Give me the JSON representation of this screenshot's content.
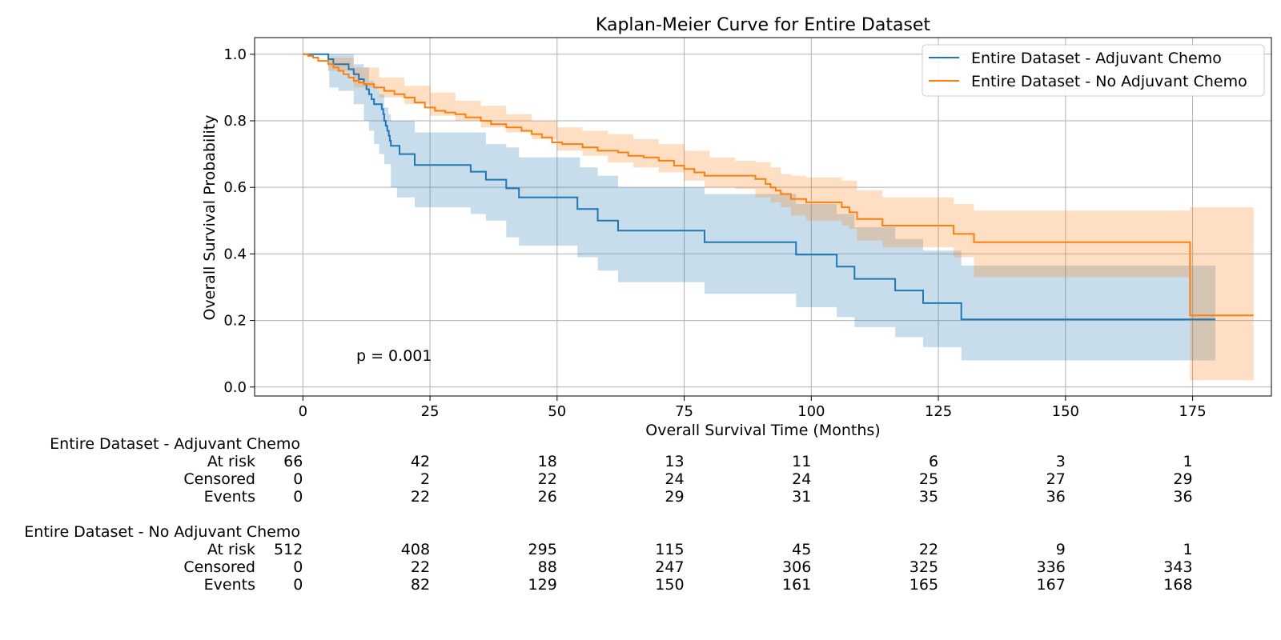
{
  "chart_data": {
    "type": "line",
    "title": "Kaplan-Meier Curve for Entire Dataset",
    "xlabel": "Overall Survival Time (Months)",
    "ylabel": "Overall Survival Probability",
    "xlim": [
      -9.5,
      190.5
    ],
    "ylim": [
      -0.027,
      1.05
    ],
    "xticks": [
      0,
      25,
      50,
      75,
      100,
      125,
      150,
      175
    ],
    "yticks": [
      0.0,
      0.2,
      0.4,
      0.6,
      0.8,
      1.0
    ],
    "xtick_labels": [
      "0",
      "25",
      "50",
      "75",
      "100",
      "125",
      "150",
      "175"
    ],
    "ytick_labels": [
      "0.0",
      "0.2",
      "0.4",
      "0.6",
      "0.8",
      "1.0"
    ],
    "grid": true,
    "legend_position": "top-right",
    "annotation": "p = 0.001",
    "series": [
      {
        "name": "Entire Dataset - Adjuvant Chemo",
        "color": "#1f77b4",
        "fill_color": "#1f77b4",
        "steps": [
          [
            0,
            1.0
          ],
          [
            5,
            0.985
          ],
          [
            6,
            0.97
          ],
          [
            9,
            0.955
          ],
          [
            10,
            0.94
          ],
          [
            11,
            0.925
          ],
          [
            12,
            0.91
          ],
          [
            12.5,
            0.895
          ],
          [
            13,
            0.88
          ],
          [
            13.5,
            0.865
          ],
          [
            14,
            0.85
          ],
          [
            15.5,
            0.835
          ],
          [
            15.8,
            0.82
          ],
          [
            16,
            0.8
          ],
          [
            16.3,
            0.785
          ],
          [
            16.6,
            0.77
          ],
          [
            16.9,
            0.755
          ],
          [
            17.1,
            0.74
          ],
          [
            17.3,
            0.725
          ],
          [
            19,
            0.7
          ],
          [
            22,
            0.667
          ],
          [
            33,
            0.647
          ],
          [
            36,
            0.623
          ],
          [
            40,
            0.597
          ],
          [
            42.5,
            0.57
          ],
          [
            54,
            0.535
          ],
          [
            58,
            0.5
          ],
          [
            62,
            0.47
          ],
          [
            79,
            0.435
          ],
          [
            97,
            0.398
          ],
          [
            105,
            0.362
          ],
          [
            108.5,
            0.325
          ],
          [
            116.5,
            0.29
          ],
          [
            122,
            0.252
          ],
          [
            129.5,
            0.203
          ],
          [
            179.5,
            0.203
          ]
        ],
        "ci_upper": [
          [
            0,
            1.0
          ],
          [
            5,
            1.0
          ],
          [
            10,
            0.97
          ],
          [
            12,
            0.96
          ],
          [
            13,
            0.92
          ],
          [
            14,
            0.9
          ],
          [
            15,
            0.88
          ],
          [
            16,
            0.84
          ],
          [
            16.8,
            0.82
          ],
          [
            17.3,
            0.8
          ],
          [
            22,
            0.765
          ],
          [
            33,
            0.765
          ],
          [
            36,
            0.73
          ],
          [
            40,
            0.72
          ],
          [
            42.5,
            0.69
          ],
          [
            54,
            0.69
          ],
          [
            54.5,
            0.66
          ],
          [
            58,
            0.635
          ],
          [
            62,
            0.6
          ],
          [
            79,
            0.58
          ],
          [
            97,
            0.55
          ],
          [
            105,
            0.52
          ],
          [
            108.5,
            0.48
          ],
          [
            116.5,
            0.445
          ],
          [
            122,
            0.41
          ],
          [
            129.5,
            0.365
          ],
          [
            179.5,
            0.365
          ]
        ],
        "ci_lower": [
          [
            0,
            1.0
          ],
          [
            5,
            0.95
          ],
          [
            5.2,
            0.9
          ],
          [
            7,
            0.89
          ],
          [
            10,
            0.85
          ],
          [
            12,
            0.8
          ],
          [
            13,
            0.77
          ],
          [
            14,
            0.73
          ],
          [
            15,
            0.7
          ],
          [
            16,
            0.67
          ],
          [
            17.3,
            0.6
          ],
          [
            18.5,
            0.57
          ],
          [
            22,
            0.54
          ],
          [
            33,
            0.52
          ],
          [
            36,
            0.5
          ],
          [
            40,
            0.45
          ],
          [
            42.5,
            0.425
          ],
          [
            54,
            0.39
          ],
          [
            58,
            0.35
          ],
          [
            62,
            0.315
          ],
          [
            79,
            0.28
          ],
          [
            97,
            0.24
          ],
          [
            105,
            0.21
          ],
          [
            108.5,
            0.18
          ],
          [
            116.5,
            0.15
          ],
          [
            122,
            0.12
          ],
          [
            129.5,
            0.08
          ],
          [
            179.5,
            0.08
          ]
        ]
      },
      {
        "name": "Entire Dataset - No Adjuvant Chemo",
        "color": "#ff7f0e",
        "fill_color": "#ff7f0e",
        "steps": [
          [
            0,
            1.0
          ],
          [
            1,
            0.995
          ],
          [
            2,
            0.99
          ],
          [
            3,
            0.98
          ],
          [
            5,
            0.97
          ],
          [
            6,
            0.96
          ],
          [
            7,
            0.95
          ],
          [
            8,
            0.94
          ],
          [
            9,
            0.93
          ],
          [
            10,
            0.92
          ],
          [
            11,
            0.915
          ],
          [
            12,
            0.91
          ],
          [
            14,
            0.9
          ],
          [
            16,
            0.89
          ],
          [
            18,
            0.88
          ],
          [
            20,
            0.87
          ],
          [
            22,
            0.855
          ],
          [
            24,
            0.84
          ],
          [
            26,
            0.83
          ],
          [
            28,
            0.825
          ],
          [
            30,
            0.82
          ],
          [
            32,
            0.81
          ],
          [
            35,
            0.8
          ],
          [
            37,
            0.79
          ],
          [
            40,
            0.78
          ],
          [
            43,
            0.77
          ],
          [
            45,
            0.76
          ],
          [
            47,
            0.75
          ],
          [
            49,
            0.735
          ],
          [
            51,
            0.73
          ],
          [
            55,
            0.72
          ],
          [
            58,
            0.71
          ],
          [
            62,
            0.705
          ],
          [
            64,
            0.695
          ],
          [
            67,
            0.69
          ],
          [
            70,
            0.68
          ],
          [
            73,
            0.665
          ],
          [
            75,
            0.655
          ],
          [
            77,
            0.645
          ],
          [
            79,
            0.635
          ],
          [
            89,
            0.625
          ],
          [
            91,
            0.61
          ],
          [
            92,
            0.6
          ],
          [
            93,
            0.59
          ],
          [
            94,
            0.58
          ],
          [
            96,
            0.565
          ],
          [
            98,
            0.565
          ],
          [
            99,
            0.555
          ],
          [
            106,
            0.54
          ],
          [
            107.5,
            0.525
          ],
          [
            109,
            0.505
          ],
          [
            114,
            0.485
          ],
          [
            128,
            0.46
          ],
          [
            132,
            0.435
          ],
          [
            174.5,
            0.215
          ],
          [
            187,
            0.215
          ]
        ],
        "ci_upper": [
          [
            0,
            1.0
          ],
          [
            5,
            0.99
          ],
          [
            10,
            0.96
          ],
          [
            15,
            0.93
          ],
          [
            20,
            0.905
          ],
          [
            25,
            0.885
          ],
          [
            30,
            0.86
          ],
          [
            35,
            0.845
          ],
          [
            40,
            0.82
          ],
          [
            45,
            0.8
          ],
          [
            50,
            0.78
          ],
          [
            55,
            0.77
          ],
          [
            60,
            0.76
          ],
          [
            65,
            0.745
          ],
          [
            70,
            0.73
          ],
          [
            75,
            0.71
          ],
          [
            80,
            0.69
          ],
          [
            85,
            0.68
          ],
          [
            89,
            0.675
          ],
          [
            92,
            0.66
          ],
          [
            94,
            0.64
          ],
          [
            96,
            0.635
          ],
          [
            99,
            0.63
          ],
          [
            106,
            0.62
          ],
          [
            109,
            0.59
          ],
          [
            114,
            0.57
          ],
          [
            128,
            0.55
          ],
          [
            132,
            0.53
          ],
          [
            174.5,
            0.54
          ],
          [
            187,
            0.54
          ]
        ],
        "ci_lower": [
          [
            0,
            1.0
          ],
          [
            5,
            0.95
          ],
          [
            10,
            0.9
          ],
          [
            15,
            0.87
          ],
          [
            20,
            0.85
          ],
          [
            25,
            0.815
          ],
          [
            30,
            0.8
          ],
          [
            35,
            0.78
          ],
          [
            40,
            0.765
          ],
          [
            45,
            0.745
          ],
          [
            50,
            0.71
          ],
          [
            55,
            0.695
          ],
          [
            60,
            0.675
          ],
          [
            65,
            0.66
          ],
          [
            70,
            0.645
          ],
          [
            75,
            0.62
          ],
          [
            79,
            0.6
          ],
          [
            85,
            0.595
          ],
          [
            89,
            0.57
          ],
          [
            92,
            0.555
          ],
          [
            94,
            0.54
          ],
          [
            96,
            0.515
          ],
          [
            99,
            0.5
          ],
          [
            106,
            0.485
          ],
          [
            107.5,
            0.475
          ],
          [
            109,
            0.44
          ],
          [
            114,
            0.42
          ],
          [
            128,
            0.39
          ],
          [
            132,
            0.33
          ],
          [
            174.5,
            0.02
          ],
          [
            187,
            0.02
          ]
        ]
      }
    ],
    "risk_table": {
      "columns": [
        0,
        25,
        50,
        75,
        100,
        125,
        150,
        175
      ],
      "groups": [
        {
          "name": "Entire Dataset - Adjuvant Chemo",
          "rows": [
            {
              "label": "At risk",
              "values": [
                "66",
                "42",
                "18",
                "13",
                "11",
                "6",
                "3",
                "1"
              ]
            },
            {
              "label": "Censored",
              "values": [
                "0",
                "2",
                "22",
                "24",
                "24",
                "25",
                "27",
                "29"
              ]
            },
            {
              "label": "Events",
              "values": [
                "0",
                "22",
                "26",
                "29",
                "31",
                "35",
                "36",
                "36"
              ]
            }
          ]
        },
        {
          "name": "Entire Dataset - No Adjuvant Chemo",
          "rows": [
            {
              "label": "At risk",
              "values": [
                "512",
                "408",
                "295",
                "115",
                "45",
                "22",
                "9",
                "1"
              ]
            },
            {
              "label": "Censored",
              "values": [
                "0",
                "22",
                "88",
                "247",
                "306",
                "325",
                "336",
                "343"
              ]
            },
            {
              "label": "Events",
              "values": [
                "0",
                "82",
                "129",
                "150",
                "161",
                "165",
                "167",
                "168"
              ]
            }
          ]
        }
      ]
    }
  }
}
